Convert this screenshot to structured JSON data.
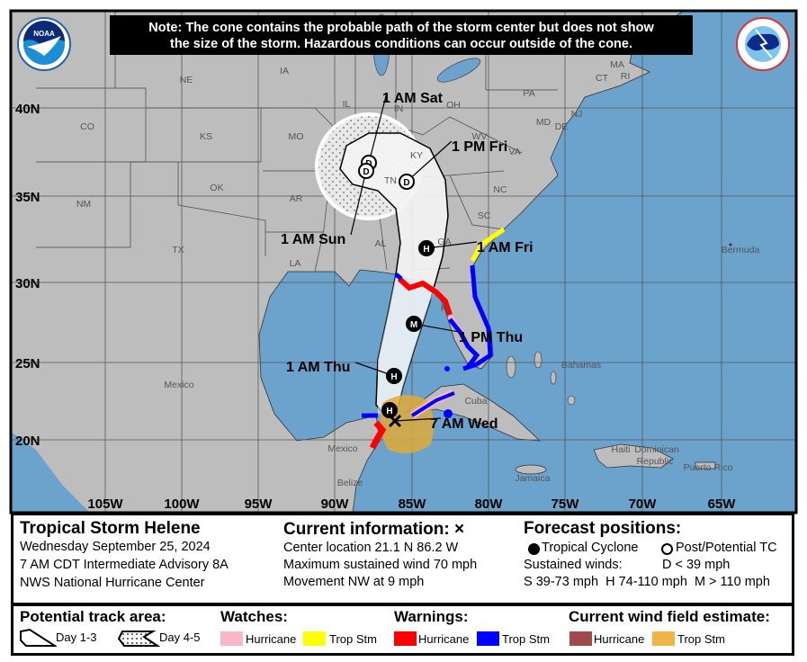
{
  "note": {
    "line1": "Note: The cone contains the probable path of the storm center but does not show",
    "line2": "the size of the storm. Hazardous conditions can occur outside of the cone."
  },
  "logos": {
    "left": "NOAA",
    "right": "NATIONAL WEATHER SERVICE"
  },
  "lat_labels": [
    "40N",
    "35N",
    "30N",
    "25N",
    "20N"
  ],
  "lon_labels": [
    "105W",
    "100W",
    "95W",
    "90W",
    "85W",
    "80W",
    "75W",
    "70W",
    "65W"
  ],
  "place_labels": [
    "NE",
    "IA",
    "IL",
    "IN",
    "OH",
    "PA",
    "MA",
    "CT",
    "RI",
    "NJ",
    "MD",
    "DE",
    "WV",
    "VA",
    "KY",
    "CO",
    "KS",
    "MO",
    "TN",
    "NC",
    "OK",
    "AR",
    "NM",
    "SC",
    "AL",
    "GA",
    "TX",
    "LA",
    "FL",
    "Bermuda",
    "Mexico",
    "Bahamas",
    "Cuba",
    "Mexico",
    "Belize",
    "Jamaica",
    "Haiti",
    "Dominican",
    "Republic",
    "Puerto Rico"
  ],
  "forecast_points": [
    {
      "time": "7 AM Wed",
      "symbol": "X"
    },
    {
      "time": "",
      "symbol": "H"
    },
    {
      "time": "1 AM Thu",
      "symbol": "H"
    },
    {
      "time": "1 PM Thu",
      "symbol": "M"
    },
    {
      "time": "1 AM Fri",
      "symbol": "H"
    },
    {
      "time": "1 PM Fri",
      "symbol": "D"
    },
    {
      "time": "1 AM Sat",
      "symbol": "D"
    },
    {
      "time": "1 AM Sun",
      "symbol": "D"
    }
  ],
  "info": {
    "storm_name": "Tropical Storm Helene",
    "date": "Wednesday September 25, 2024",
    "advisory": "7 AM CDT Intermediate Advisory 8A",
    "center": "NWS National Hurricane Center",
    "current_title": "Current information: ×",
    "location": "Center location 21.1 N 86.2 W",
    "max_wind": "Maximum sustained wind 70 mph",
    "movement": "Movement NW at 9 mph",
    "forecast_title": "Forecast positions:",
    "tc": "Tropical Cyclone",
    "ptc": "Post/Potential TC",
    "sustained": "Sustained winds:",
    "d": "D < 39 mph",
    "shm": "S 39-73 mph  H 74-110 mph  M > 110 mph"
  },
  "legend": {
    "track_title": "Potential track area:",
    "day13": "Day 1-3",
    "day45": "Day 4-5",
    "watches_title": "Watches:",
    "watch_hurricane": "Hurricane",
    "watch_ts": "Trop Stm",
    "warnings_title": "Warnings:",
    "warn_hurricane": "Hurricane",
    "warn_ts": "Trop Stm",
    "wind_title": "Current wind field estimate:",
    "wind_hurricane": "Hurricane",
    "wind_ts": "Trop Stm"
  },
  "colors": {
    "ocean": "#6ba3cc",
    "land": "#bdbdbd",
    "cone": "#f2f2f2",
    "hurricane_watch": "#f9b8c8",
    "ts_watch": "#ffff00",
    "hurricane_warning": "#ff0000",
    "ts_warning": "#0000ff",
    "hurricane_wind": "#a04a4a",
    "ts_wind": "#e6b040"
  }
}
